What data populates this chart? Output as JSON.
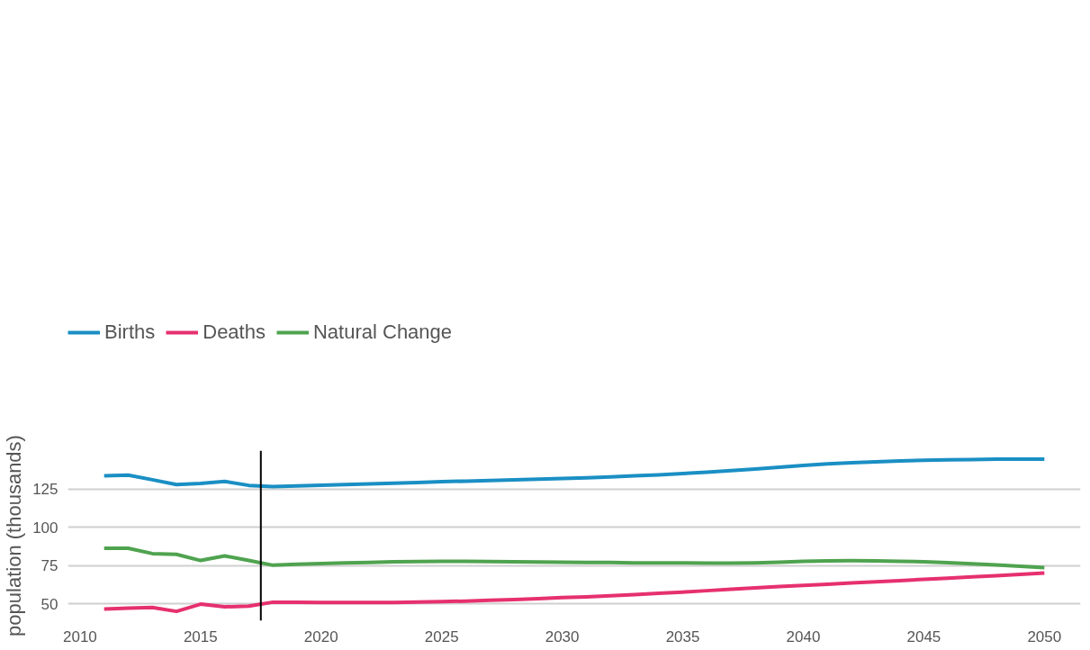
{
  "chart_data": {
    "type": "line",
    "ylabel": "population (thousands)",
    "x": [
      2011,
      2012,
      2013,
      2014,
      2015,
      2016,
      2017,
      2018,
      2019,
      2020,
      2021,
      2022,
      2023,
      2024,
      2025,
      2026,
      2027,
      2028,
      2029,
      2030,
      2031,
      2032,
      2033,
      2034,
      2035,
      2036,
      2037,
      2038,
      2039,
      2040,
      2041,
      2042,
      2043,
      2044,
      2045,
      2046,
      2047,
      2048,
      2049,
      2050
    ],
    "series": [
      {
        "name": "Births",
        "color": "#1a8fc4",
        "values": [
          133.5,
          134,
          131,
          127.8,
          128.6,
          129.9,
          127.3,
          126.5,
          126.9,
          127.4,
          127.8,
          128.2,
          128.7,
          129.2,
          129.7,
          130.1,
          130.5,
          130.9,
          131.3,
          131.8,
          132.3,
          132.8,
          133.5,
          134.2,
          135,
          135.9,
          136.9,
          138,
          139.1,
          140.3,
          141.3,
          142.1,
          142.7,
          143.2,
          143.7,
          144,
          144.2,
          144.4,
          144.4,
          144.4
        ]
      },
      {
        "name": "Deaths",
        "color": "#e6306f",
        "values": [
          46.6,
          47.2,
          47.7,
          45.1,
          49.8,
          48.1,
          48.5,
          51.1,
          51,
          50.9,
          50.9,
          50.9,
          50.9,
          51.2,
          51.5,
          51.8,
          52.3,
          52.8,
          53.4,
          54.1,
          54.6,
          55.3,
          56.1,
          56.9,
          57.7,
          58.6,
          59.6,
          60.5,
          61.3,
          62,
          62.8,
          63.6,
          64.4,
          65.2,
          66,
          66.8,
          67.6,
          68.4,
          69.2,
          70.1
        ]
      },
      {
        "name": "Natural Change",
        "color": "#4fa34f",
        "values": [
          86.3,
          86.3,
          82.8,
          82.3,
          78.3,
          81.3,
          78.3,
          75.2,
          75.8,
          76.3,
          76.7,
          77.1,
          77.4,
          77.6,
          77.7,
          77.7,
          77.6,
          77.5,
          77.3,
          77.2,
          77.1,
          77,
          76.8,
          76.7,
          76.7,
          76.6,
          76.6,
          76.8,
          77.2,
          77.8,
          78.1,
          78.2,
          78.1,
          77.8,
          77.5,
          76.9,
          76.2,
          75.4,
          74.6,
          73.7
        ]
      }
    ],
    "xlim": [
      2009.5,
      2051.5
    ],
    "xticks": [
      2010,
      2015,
      2020,
      2025,
      2030,
      2035,
      2040,
      2045,
      2050
    ],
    "ylim": [
      39,
      150
    ],
    "yticks": [
      50,
      75,
      100,
      125
    ],
    "ref_lines": [
      {
        "axis": "x",
        "value": 2017.5,
        "color": "#000000"
      }
    ],
    "grid": "y",
    "legend": "top left",
    "marker": "none",
    "line_style": "solid"
  }
}
